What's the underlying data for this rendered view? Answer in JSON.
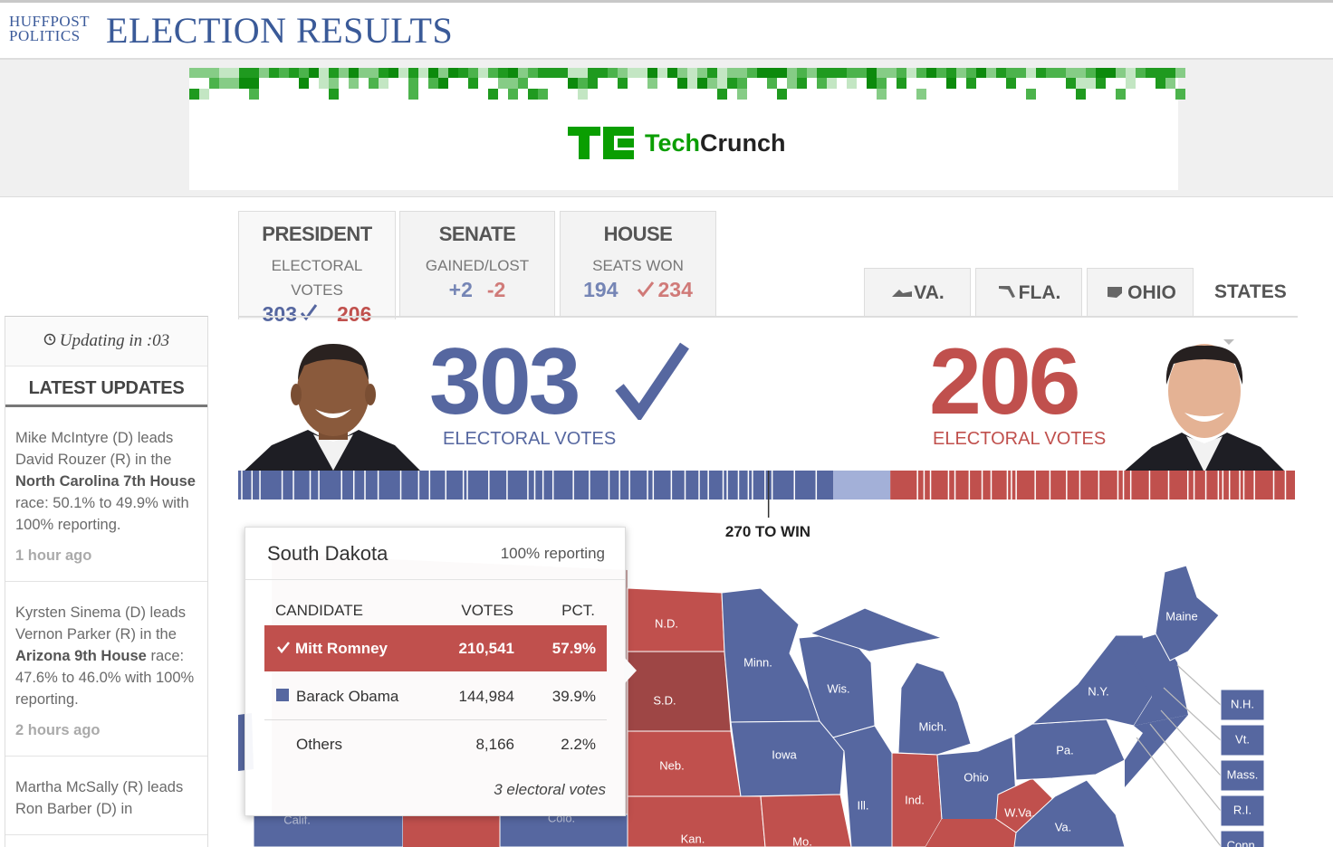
{
  "header": {
    "brand_top": "HUFFPOST",
    "brand_bottom": "POLITICS",
    "title": "ELECTION RESULTS"
  },
  "ad": {
    "brand_part1": "Tech",
    "brand_part2": "Crunch"
  },
  "tabs": [
    {
      "title": "PRESIDENT",
      "subtitle": "ELECTORAL VOTES",
      "left": 303,
      "right": 206
    },
    {
      "title": "SENATE",
      "subtitle": "GAINED/LOST",
      "left": "+2",
      "right": "-2"
    },
    {
      "title": "HOUSE",
      "subtitle": "SEATS WON",
      "left": 194,
      "right": 234
    }
  ],
  "state_tabs": [
    "VA.",
    "FLA.",
    "OHIO",
    "STATES"
  ],
  "sidebar": {
    "timer": "Updating in :03",
    "heading": "LATEST UPDATES",
    "updates": [
      {
        "parts": [
          {
            "text": "Mike McIntyre (D) leads David Rouzer (R) in the "
          },
          {
            "text": "North Carolina 7th House",
            "bold": true
          },
          {
            "text": " race: 50.1% to 49.9% with 100% reporting."
          }
        ],
        "time": "1 hour ago"
      },
      {
        "parts": [
          {
            "text": "Kyrsten Sinema (D) leads Vernon Parker (R) in the "
          },
          {
            "text": "Arizona 9th House",
            "bold": true
          },
          {
            "text": " race: 47.6% to 46.0% with 100% reporting."
          }
        ],
        "time": "2 hours ago"
      },
      {
        "parts": [
          {
            "text": "Martha McSally (R) leads Ron Barber (D) in"
          }
        ]
      }
    ]
  },
  "scoreboard": {
    "colors": {
      "D": "#5667a0",
      "R": "#c0504d",
      "undecided": "#a3b0d8",
      "selected": "#9e4645"
    },
    "obama": {
      "votes": 303,
      "label": "ELECTORAL VOTES"
    },
    "romney": {
      "votes": 206,
      "label": "ELECTORAL VOTES"
    },
    "undecided": 29,
    "xlim": [
      0,
      538
    ],
    "win_line": {
      "value": 270,
      "label": "270 TO WIN"
    }
  },
  "popup": {
    "state": "South Dakota",
    "reporting": "100% reporting",
    "columns": [
      "CANDIDATE",
      "VOTES",
      "PCT."
    ],
    "rows": [
      {
        "candidate": "Mitt Romney",
        "votes": "210,541",
        "pct": "57.9%",
        "party": "R",
        "winner": true
      },
      {
        "candidate": "Barack Obama",
        "votes": "144,984",
        "pct": "39.9%",
        "party": "D"
      },
      {
        "candidate": "Others",
        "votes": "8,166",
        "pct": "2.2%"
      }
    ],
    "footer": "3 electoral votes"
  },
  "map": {
    "states": [
      {
        "label": "N.D.",
        "party": "R"
      },
      {
        "label": "S.D.",
        "party": "R",
        "selected": true
      },
      {
        "label": "Neb.",
        "party": "R"
      },
      {
        "label": "Kan.",
        "party": "R"
      },
      {
        "label": "Minn.",
        "party": "D"
      },
      {
        "label": "Iowa",
        "party": "D"
      },
      {
        "label": "Mo.",
        "party": "R"
      },
      {
        "label": "Wis.",
        "party": "D"
      },
      {
        "label": "Ill.",
        "party": "D"
      },
      {
        "label": "Mich.",
        "party": "D"
      },
      {
        "label": "Ind.",
        "party": "R"
      },
      {
        "label": "Ohio",
        "party": "D"
      },
      {
        "label": "W.Va.",
        "party": "R"
      },
      {
        "label": "Va.",
        "party": "D"
      },
      {
        "label": "Pa.",
        "party": "D"
      },
      {
        "label": "N.Y.",
        "party": "D"
      },
      {
        "label": "Maine",
        "party": "D"
      },
      {
        "label": "Calif.",
        "party": "D"
      },
      {
        "label": "Colo.",
        "party": "D"
      },
      {
        "label": "N.H.",
        "party": "D"
      },
      {
        "label": "Vt.",
        "party": "D"
      },
      {
        "label": "Mass.",
        "party": "D"
      },
      {
        "label": "R.I.",
        "party": "D"
      },
      {
        "label": "Conn.",
        "party": "D"
      }
    ]
  }
}
